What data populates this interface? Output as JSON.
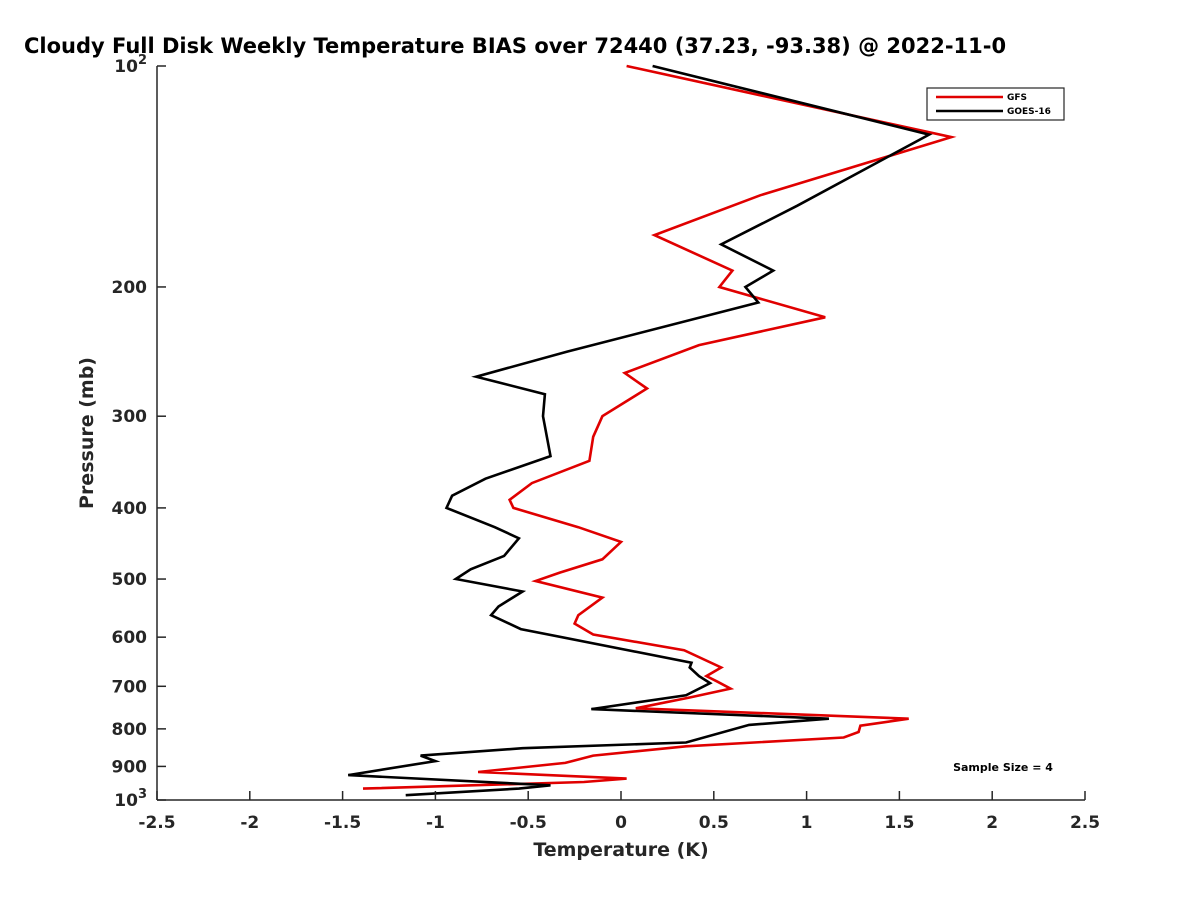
{
  "chart_data": {
    "type": "line",
    "title": "Cloudy Full Disk Weekly Temperature BIAS over 72440 (37.23, -93.38) @ 2022-11-0",
    "xlabel": "Temperature (K)",
    "ylabel": "Pressure (mb)",
    "xlim": [
      -2.5,
      2.5
    ],
    "ylim": [
      1000,
      100
    ],
    "yscale": "log",
    "x_ticks": [
      "-2.5",
      "-2",
      "-1.5",
      "-1",
      "-0.5",
      "0",
      "0.5",
      "1",
      "1.5",
      "2",
      "2.5"
    ],
    "x_tick_values": [
      -2.5,
      -2,
      -1.5,
      -1,
      -0.5,
      0,
      0.5,
      1,
      1.5,
      2,
      2.5
    ],
    "y_ticks": [
      {
        "value": 100,
        "base": "10",
        "exp": "2"
      },
      {
        "value": 200,
        "label": "200"
      },
      {
        "value": 300,
        "label": "300"
      },
      {
        "value": 400,
        "label": "400"
      },
      {
        "value": 500,
        "label": "500"
      },
      {
        "value": 600,
        "label": "600"
      },
      {
        "value": 700,
        "label": "700"
      },
      {
        "value": 800,
        "label": "800"
      },
      {
        "value": 900,
        "label": "900"
      },
      {
        "value": 1000,
        "base": "10",
        "exp": "3"
      }
    ],
    "legend_position": "top-right",
    "annotation": "Sample Size = 4",
    "grid": false,
    "series": [
      {
        "name": "GFS",
        "color": "#e00000",
        "points": [
          [
            0.03,
            100
          ],
          [
            1.78,
            125
          ],
          [
            0.75,
            150
          ],
          [
            0.18,
            170
          ],
          [
            0.6,
            190
          ],
          [
            0.53,
            200
          ],
          [
            1.1,
            220
          ],
          [
            0.42,
            240
          ],
          [
            0.02,
            262
          ],
          [
            0.14,
            275
          ],
          [
            -0.1,
            300
          ],
          [
            -0.15,
            320
          ],
          [
            -0.17,
            345
          ],
          [
            -0.48,
            370
          ],
          [
            -0.6,
            390
          ],
          [
            -0.58,
            400
          ],
          [
            -0.23,
            425
          ],
          [
            0.0,
            445
          ],
          [
            -0.1,
            470
          ],
          [
            -0.33,
            490
          ],
          [
            -0.46,
            503
          ],
          [
            -0.1,
            530
          ],
          [
            -0.23,
            560
          ],
          [
            -0.25,
            575
          ],
          [
            -0.15,
            595
          ],
          [
            0.34,
            625
          ],
          [
            0.54,
            660
          ],
          [
            0.46,
            678
          ],
          [
            0.52,
            690
          ],
          [
            0.59,
            705
          ],
          [
            0.37,
            725
          ],
          [
            0.08,
            750
          ],
          [
            1.55,
            775
          ],
          [
            1.29,
            792
          ],
          [
            1.28,
            808
          ],
          [
            1.2,
            822
          ],
          [
            0.35,
            845
          ],
          [
            -0.15,
            870
          ],
          [
            -0.3,
            890
          ],
          [
            -0.77,
            916
          ],
          [
            0.03,
            935
          ],
          [
            -0.2,
            945
          ],
          [
            -1.39,
            965
          ]
        ]
      },
      {
        "name": "GOES-16",
        "color": "#000000",
        "points": [
          [
            0.17,
            100
          ],
          [
            1.66,
            124
          ],
          [
            0.95,
            155
          ],
          [
            0.54,
            175
          ],
          [
            0.82,
            190
          ],
          [
            0.67,
            200
          ],
          [
            0.74,
            210
          ],
          [
            -0.29,
            245
          ],
          [
            -0.78,
            265
          ],
          [
            -0.41,
            280
          ],
          [
            -0.42,
            300
          ],
          [
            -0.38,
            340
          ],
          [
            -0.73,
            365
          ],
          [
            -0.91,
            385
          ],
          [
            -0.94,
            400
          ],
          [
            -0.68,
            425
          ],
          [
            -0.55,
            440
          ],
          [
            -0.63,
            465
          ],
          [
            -0.81,
            485
          ],
          [
            -0.89,
            500
          ],
          [
            -0.53,
            520
          ],
          [
            -0.66,
            545
          ],
          [
            -0.7,
            560
          ],
          [
            -0.54,
            585
          ],
          [
            0.38,
            650
          ],
          [
            0.37,
            660
          ],
          [
            0.42,
            678
          ],
          [
            0.48,
            693
          ],
          [
            0.35,
            720
          ],
          [
            -0.16,
            752
          ],
          [
            1.12,
            775
          ],
          [
            0.69,
            790
          ],
          [
            0.35,
            835
          ],
          [
            -0.53,
            850
          ],
          [
            -1.08,
            870
          ],
          [
            -1.0,
            885
          ],
          [
            -1.47,
            925
          ],
          [
            -0.38,
            955
          ],
          [
            -0.55,
            965
          ],
          [
            -1.16,
            985
          ]
        ]
      }
    ]
  }
}
